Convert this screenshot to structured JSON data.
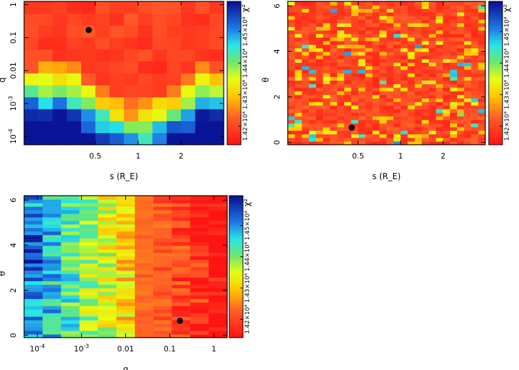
{
  "chart_data": [
    {
      "type": "heatmap",
      "id": "s_vs_q",
      "xlabel": "s (R_E)",
      "ylabel": "q",
      "xscale": "log",
      "yscale": "log",
      "xlim_log10": [
        -0.8,
        0.6
      ],
      "ylim_log10": [
        -4.25,
        0.1
      ],
      "xticks": [
        {
          "v": 0.5,
          "label": "0.5"
        },
        {
          "v": 1,
          "label": "1"
        },
        {
          "v": 2,
          "label": "2"
        }
      ],
      "yticks": [
        {
          "v": 1,
          "label": "1"
        },
        {
          "v": 0.1,
          "label": "0.1"
        },
        {
          "v": 0.01,
          "label": "0.01"
        },
        {
          "v": 0.001,
          "label": "10^-3"
        },
        {
          "v": 0.0001,
          "label": "10^-4"
        }
      ],
      "best_fit": {
        "s": 0.45,
        "q": 0.17
      },
      "grid_cols": 14,
      "grid_rows": 12,
      "pattern": "v-shape: low chi2 (red) for large q at all s; high chi2 (blue) at small q away from s=1"
    },
    {
      "type": "heatmap",
      "id": "s_vs_theta",
      "xlabel": "s (R_E)",
      "ylabel": "θ",
      "xscale": "log",
      "yscale": "linear",
      "xlim_log10": [
        -0.8,
        0.6
      ],
      "ylim": [
        -0.1,
        6.2
      ],
      "xticks": [
        {
          "v": 0.5,
          "label": "0.5"
        },
        {
          "v": 1,
          "label": "1"
        },
        {
          "v": 2,
          "label": "2"
        }
      ],
      "yticks": [
        {
          "v": 0,
          "label": "0"
        },
        {
          "v": 2,
          "label": "2"
        },
        {
          "v": 4,
          "label": "4"
        },
        {
          "v": 6,
          "label": "6"
        }
      ],
      "best_fit": {
        "s": 0.45,
        "theta": 0.65
      },
      "grid_cols": 28,
      "grid_rows": 40,
      "pattern": "mostly red/orange, scattered yellow and a few cyan cells"
    },
    {
      "type": "heatmap",
      "id": "q_vs_theta",
      "xlabel": "q",
      "ylabel": "θ",
      "xscale": "log",
      "yscale": "linear",
      "xlim_log10": [
        -4.3,
        0.3
      ],
      "ylim": [
        -0.1,
        6.2
      ],
      "xticks": [
        {
          "v": 0.0001,
          "label": "10^-4"
        },
        {
          "v": 0.001,
          "label": "10^-3"
        },
        {
          "v": 0.01,
          "label": "0.01"
        },
        {
          "v": 0.1,
          "label": "0.1"
        },
        {
          "v": 1,
          "label": "1"
        }
      ],
      "yticks": [
        {
          "v": 0,
          "label": "0"
        },
        {
          "v": 2,
          "label": "2"
        },
        {
          "v": 4,
          "label": "4"
        },
        {
          "v": 6,
          "label": "6"
        }
      ],
      "best_fit": {
        "q": 0.17,
        "theta": 0.65
      },
      "grid_cols": 11,
      "grid_rows": 40,
      "pattern": "blue/cyan at small q on left, transitioning to red at large q"
    }
  ],
  "colorbar": {
    "label": "χ²",
    "ticks": [
      "1.42×10⁴",
      "1.43×10⁴",
      "1.44×10⁴",
      "1.45×10⁴"
    ]
  }
}
